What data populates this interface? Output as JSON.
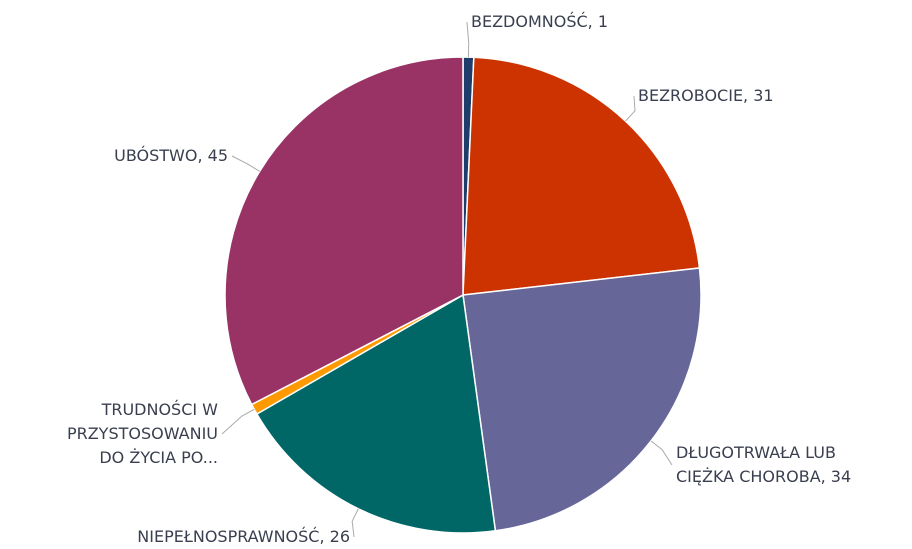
{
  "chart_data": {
    "type": "pie",
    "categories": [
      [
        "BEZDOMNOŚĆ, 1"
      ],
      [
        "BEZROBOCIE, 31"
      ],
      [
        "DŁUGOTRWAŁA LUB",
        "CIĘŻKA CHOROBA, 34"
      ],
      [
        "NIEPEŁNOSPRAWNOŚĆ, 26"
      ],
      [
        "TRUDNOŚCI W",
        "PRZYSTOSOWANIU",
        "DO ŻYCIA PO..."
      ],
      [
        "UBÓSTWO, 45"
      ]
    ],
    "values": [
      1,
      31,
      34,
      26,
      1,
      45
    ],
    "colors": [
      "#1f3d6b",
      "#cc3300",
      "#666699",
      "#006666",
      "#ff9900",
      "#993366"
    ]
  }
}
